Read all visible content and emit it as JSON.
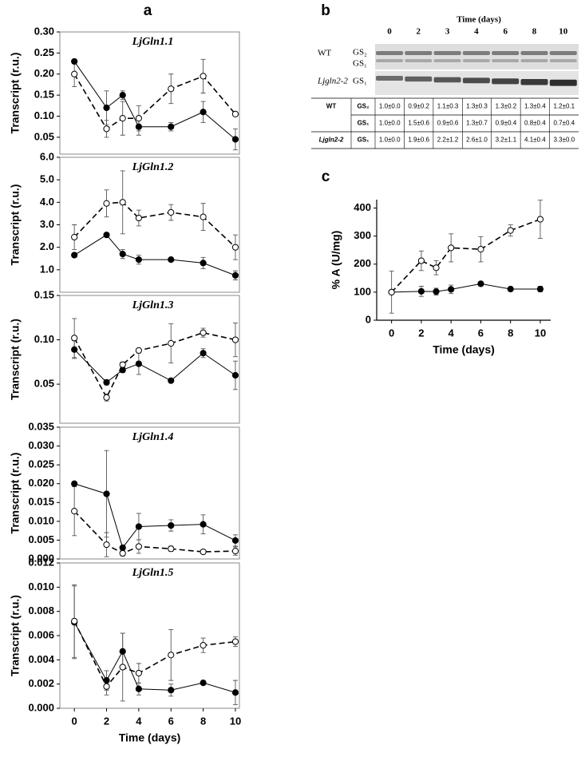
{
  "panel_labels": [
    "a",
    "b",
    "c"
  ],
  "gel": {
    "time_label": "Time (days)",
    "lanes": [
      "0",
      "2",
      "3",
      "4",
      "6",
      "8",
      "10"
    ],
    "wt_label": "WT",
    "wt_bands": [
      "GS₂",
      "GS₁"
    ],
    "mutant_label": "Ljgln2-2",
    "mutant_band": "GS₁"
  },
  "table": {
    "groups": [
      {
        "genotype": "WT",
        "rows": [
          {
            "isoform": "GS₂",
            "values": [
              "1.0±0.0",
              "0.9±0.2",
              "1.1±0.3",
              "1.3±0.3",
              "1.3±0.2",
              "1.3±0.4",
              "1.2±0.1"
            ]
          },
          {
            "isoform": "GS₁",
            "values": [
              "1.0±0.0",
              "1.5±0.6",
              "0.9±0.6",
              "1.3±0.7",
              "0.9±0.4",
              "0.8±0.4",
              "0.7±0.4"
            ]
          }
        ]
      },
      {
        "genotype": "Ljgln2-2",
        "rows": [
          {
            "isoform": "GS₁",
            "values": [
              "1.0±0.0",
              "1.9±0.6",
              "2.2±1.2",
              "2.6±1.0",
              "3.2±1.1",
              "4.1±0.4",
              "3.3±0.0"
            ]
          }
        ]
      }
    ]
  },
  "chart_data": [
    {
      "type": "line",
      "title": "LjGln1.1",
      "ylabel": "Transcript (r.u.)",
      "x": [
        0,
        2,
        3,
        4,
        6,
        8,
        10
      ],
      "xlim": [
        -0.9,
        10.25
      ],
      "ylim": [
        0.01,
        0.3
      ],
      "yticks": [
        {
          "value": 0.3,
          "label": "0.30"
        },
        0.25,
        {
          "value": 0.2,
          "label": "0.20"
        },
        0.15,
        {
          "value": 0.1,
          "label": "0.10"
        },
        0.05
      ],
      "series": [
        {
          "color": "#000000",
          "marker_fill": "#000000",
          "linestyle": "solid",
          "values": [
            0.23,
            0.12,
            0.15,
            0.075,
            0.075,
            0.11,
            0.045
          ],
          "errors": [
            0.005,
            0.04,
            0.01,
            0.02,
            0.01,
            0.025,
            0.025
          ]
        },
        {
          "color": "#000000",
          "marker_fill": "#ffffff",
          "linestyle": "dashed",
          "values": [
            0.2,
            0.07,
            0.095,
            0.095,
            0.165,
            0.195,
            0.105
          ],
          "errors": [
            0.03,
            0.02,
            0.04,
            0.03,
            0.035,
            0.04,
            0.005
          ]
        }
      ]
    },
    {
      "type": "line",
      "title": "LjGln1.2",
      "ylabel": "Transcript (r.u.)",
      "x": [
        0,
        2,
        3,
        4,
        6,
        8,
        10
      ],
      "xlim": [
        -0.9,
        10.25
      ],
      "ylim": [
        0,
        6
      ],
      "yticks": [
        {
          "value": 6,
          "label": "6.0"
        },
        {
          "value": 5,
          "label": "5.0"
        },
        {
          "value": 4,
          "label": "4.0"
        },
        {
          "value": 3,
          "label": "3.0"
        },
        {
          "value": 2,
          "label": "2.0"
        },
        {
          "value": 1,
          "label": "1.0"
        }
      ],
      "series": [
        {
          "color": "#000000",
          "marker_fill": "#000000",
          "linestyle": "solid",
          "values": [
            1.65,
            2.55,
            1.7,
            1.45,
            1.45,
            1.3,
            0.75
          ],
          "errors": [
            0.1,
            0.05,
            0.2,
            0.2,
            0.05,
            0.25,
            0.2
          ]
        },
        {
          "color": "#000000",
          "marker_fill": "#ffffff",
          "linestyle": "dashed",
          "values": [
            2.45,
            3.95,
            4.0,
            3.3,
            3.55,
            3.35,
            2.0
          ],
          "errors": [
            0.55,
            0.6,
            1.4,
            0.35,
            0.35,
            0.6,
            0.55
          ]
        }
      ]
    },
    {
      "type": "line",
      "title": "LjGln1.3",
      "ylabel": "Transcript (r.u.)",
      "x": [
        0,
        2,
        3,
        4,
        6,
        8,
        10
      ],
      "xlim": [
        -0.9,
        10.25
      ],
      "ylim": [
        0.006,
        0.15
      ],
      "yticks": [
        0.15,
        {
          "value": 0.1,
          "label": "0.10"
        },
        0.05
      ],
      "series": [
        {
          "color": "#000000",
          "marker_fill": "#000000",
          "linestyle": "solid",
          "values": [
            0.089,
            0.052,
            0.066,
            0.073,
            0.054,
            0.085,
            0.06
          ],
          "errors": [
            0.01,
            0.003,
            0.003,
            0.012,
            0.002,
            0.005,
            0.016
          ]
        },
        {
          "color": "#000000",
          "marker_fill": "#ffffff",
          "linestyle": "dashed",
          "values": [
            0.102,
            0.035,
            0.072,
            0.088,
            0.096,
            0.108,
            0.1
          ],
          "errors": [
            0.022,
            0.004,
            0.003,
            0.002,
            0.022,
            0.005,
            0.019
          ]
        }
      ]
    },
    {
      "type": "line",
      "title": "LjGln1.4",
      "ylabel": "Transcript (r.u.)",
      "x": [
        0,
        2,
        3,
        4,
        6,
        8,
        10
      ],
      "xlim": [
        -0.9,
        10.25
      ],
      "ylim": [
        0,
        0.035
      ],
      "yticks": [
        0.035,
        {
          "value": 0.03,
          "label": "0.030"
        },
        0.025,
        {
          "value": 0.02,
          "label": "0.020"
        },
        0.015,
        {
          "value": 0.01,
          "label": "0.010"
        },
        0.005,
        {
          "value": 0,
          "label": "0.000"
        }
      ],
      "series": [
        {
          "color": "#000000",
          "marker_fill": "#000000",
          "linestyle": "solid",
          "values": [
            0.02,
            0.0173,
            0.003,
            0.0086,
            0.0089,
            0.0092,
            0.0049
          ],
          "errors": [
            0.0005,
            0.0115,
            0.0002,
            0.0035,
            0.0015,
            0.0025,
            0.0015
          ]
        },
        {
          "color": "#000000",
          "marker_fill": "#ffffff",
          "linestyle": "dashed",
          "values": [
            0.0127,
            0.0038,
            0.0015,
            0.0033,
            0.0027,
            0.0019,
            0.0021
          ],
          "errors": [
            0.0065,
            0.0032,
            0.0007,
            0.0018,
            0.0007,
            0.0002,
            0.0011
          ]
        }
      ]
    },
    {
      "type": "line",
      "title": "LjGln1.5",
      "ylabel": "Transcript (r.u.)",
      "xlabel": "Time (days)",
      "x": [
        0,
        2,
        3,
        4,
        6,
        8,
        10
      ],
      "xlim": [
        -0.9,
        10.25
      ],
      "xticks": [
        0,
        2,
        4,
        6,
        8,
        10
      ],
      "ylim": [
        0,
        0.012
      ],
      "yticks": [
        0.012,
        {
          "value": 0.01,
          "label": "0.010"
        },
        0.008,
        0.006,
        0.004,
        0.002,
        {
          "value": 0,
          "label": "0.000"
        }
      ],
      "series": [
        {
          "color": "#000000",
          "marker_fill": "#000000",
          "linestyle": "solid",
          "values": [
            0.0071,
            0.0023,
            0.0047,
            0.0016,
            0.0015,
            0.0021,
            0.0013
          ],
          "errors": [
            0.003,
            0.0008,
            0.0015,
            0.0005,
            0.0005,
            0.0001,
            0.001
          ]
        },
        {
          "color": "#000000",
          "marker_fill": "#ffffff",
          "linestyle": "dashed",
          "values": [
            0.0072,
            0.0018,
            0.0034,
            0.0029,
            0.0044,
            0.0052,
            0.0055
          ],
          "errors": [
            0.003,
            0.0007,
            0.0028,
            0.0008,
            0.0021,
            0.0006,
            0.0004
          ]
        }
      ]
    },
    {
      "type": "line",
      "ylabel": "% A (U/mg)",
      "xlabel": "Time (days)",
      "x": [
        0,
        2,
        3,
        4,
        6,
        8,
        10
      ],
      "xlim": [
        -1,
        10.7
      ],
      "xticks": [
        0,
        2,
        4,
        6,
        8,
        10
      ],
      "ylim": [
        0,
        430
      ],
      "yticks": [
        0,
        100,
        200,
        300,
        400
      ],
      "series": [
        {
          "color": "#000000",
          "marker_fill": "#000000",
          "linestyle": "solid",
          "values": [
            100,
            103,
            102,
            110,
            130,
            111,
            111
          ],
          "errors": [
            0,
            18,
            12,
            15,
            8,
            5,
            10
          ]
        },
        {
          "color": "#000000",
          "marker_fill": "#ffffff",
          "linestyle": "dashed",
          "values": [
            100,
            212,
            187,
            258,
            253,
            320,
            360
          ],
          "errors": [
            75,
            35,
            25,
            50,
            45,
            20,
            68
          ]
        }
      ]
    }
  ]
}
